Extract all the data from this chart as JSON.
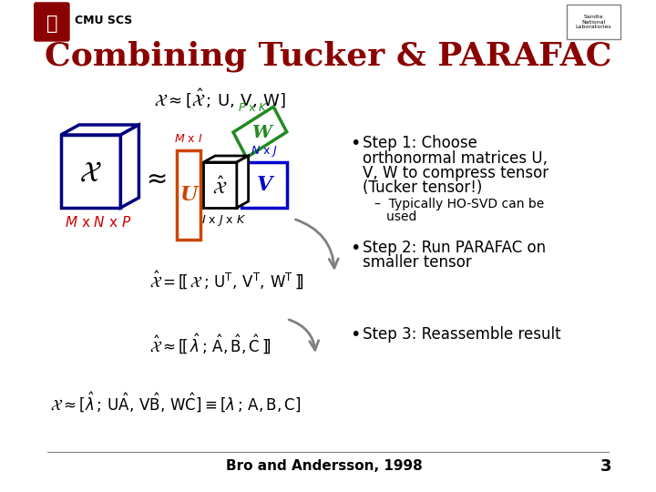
{
  "title": "Combining Tucker & PARAFAC",
  "title_color": "#8B0000",
  "title_fontsize": 26,
  "header_text": "CMU SCS",
  "footer_text": "Bro and Andersson, 1998",
  "page_number": "3",
  "label_MxNxP": "$M$ x $N$ x $P$",
  "label_MxI": "$M$ x $I$",
  "label_NxJ": "$N$ x $J$",
  "label_PxK": "$P$ x $K$",
  "label_IxJxK": "$I$ x $J$ x $K$",
  "label_U": "U",
  "label_V": "V",
  "label_W": "W",
  "label_xhat": "$\\hat{\\mathcal{X}}$",
  "label_x": "$\\mathcal{X}$",
  "color_dark_blue": "#000080",
  "color_orange": "#cc4400",
  "color_blue_v": "#0000cc",
  "color_green_w": "#228B22",
  "color_red_label": "#cc0000",
  "color_blue_label": "#0000cc"
}
